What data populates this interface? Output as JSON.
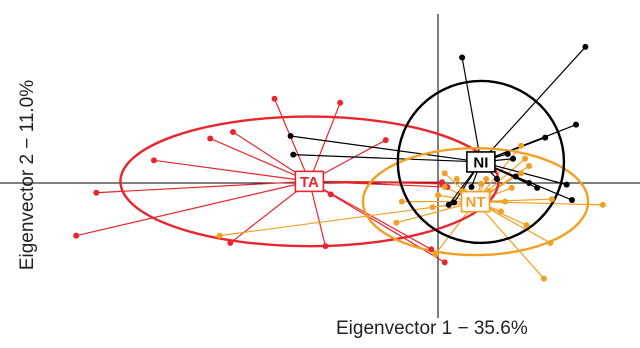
{
  "chart_data": {
    "type": "scatter",
    "title": "",
    "xlabel": "Eigenvector 1 − 35.6%",
    "ylabel": "Eigenvector 2 − 11.0%",
    "xlim": [
      -3.2,
      1.5
    ],
    "ylim": [
      -1.9,
      1.9
    ],
    "grid": false,
    "legend": "none",
    "axes_through_origin": true,
    "groups": [
      {
        "label": "TA",
        "color": "#e8262b",
        "centroid": [
          -0.96,
          0.02
        ],
        "ellipse": {
          "rx": 1.41,
          "ry": 0.8
        },
        "points": [
          [
            -1.22,
            1.04
          ],
          [
            -1.53,
            0.63
          ],
          [
            -1.7,
            0.55
          ],
          [
            -2.12,
            0.28
          ],
          [
            -2.55,
            -0.12
          ],
          [
            -2.7,
            -0.65
          ],
          [
            -1.55,
            -0.74
          ],
          [
            -0.84,
            -0.78
          ],
          [
            -0.73,
            0.99
          ],
          [
            -0.39,
            0.53
          ],
          [
            0.03,
            -0.01
          ],
          [
            0.03,
            0.01
          ],
          [
            0.07,
            -0.05
          ],
          [
            -0.8,
            -0.14
          ],
          [
            0.05,
            -0.98
          ],
          [
            -0.05,
            -0.82
          ]
        ]
      },
      {
        "label": "NT",
        "color": "#f2a024",
        "centroid": [
          0.28,
          -0.23
        ],
        "ellipse": {
          "rx": 0.84,
          "ry": 0.66
        },
        "points": [
          [
            0.62,
            0.46
          ],
          [
            0.65,
            0.3
          ],
          [
            0.68,
            0.21
          ],
          [
            0.62,
            0.12
          ],
          [
            0.55,
            -0.06
          ],
          [
            0.5,
            -0.23
          ],
          [
            0.47,
            -0.35
          ],
          [
            0.66,
            -0.52
          ],
          [
            0.84,
            -0.74
          ],
          [
            0.79,
            -1.18
          ],
          [
            1.23,
            -0.27
          ],
          [
            0.85,
            -0.2
          ],
          [
            -0.27,
            -0.23
          ],
          [
            -0.31,
            -0.49
          ],
          [
            -1.63,
            -0.65
          ],
          [
            -0.02,
            -0.88
          ],
          [
            0.05,
            0.12
          ],
          [
            0.14,
            0.05
          ],
          [
            0.36,
            0.05
          ],
          [
            0.32,
            -0.01
          ],
          [
            0.18,
            -0.1
          ],
          [
            0.0,
            -0.15
          ],
          [
            -0.04,
            -0.3
          ],
          [
            0.38,
            -0.1
          ],
          [
            0.05,
            -0.05
          ]
        ]
      },
      {
        "label": "NI",
        "color": "#000000",
        "centroid": [
          0.32,
          0.26
        ],
        "ellipse": {
          "rx": 0.62,
          "ry": 1.0
        },
        "points": [
          [
            0.18,
            1.55
          ],
          [
            1.1,
            1.68
          ],
          [
            1.03,
            0.72
          ],
          [
            0.8,
            0.56
          ],
          [
            0.52,
            0.36
          ],
          [
            0.58,
            0.08
          ],
          [
            0.74,
            -0.06
          ],
          [
            0.96,
            -0.02
          ],
          [
            1.0,
            -0.21
          ],
          [
            -1.1,
            0.58
          ],
          [
            -1.08,
            0.35
          ],
          [
            0.08,
            -0.27
          ],
          [
            0.12,
            -0.24
          ],
          [
            0.44,
            0.05
          ],
          [
            0.56,
            0.3
          ],
          [
            0.68,
            0.0
          ],
          [
            0.25,
            -0.05
          ]
        ]
      }
    ]
  }
}
